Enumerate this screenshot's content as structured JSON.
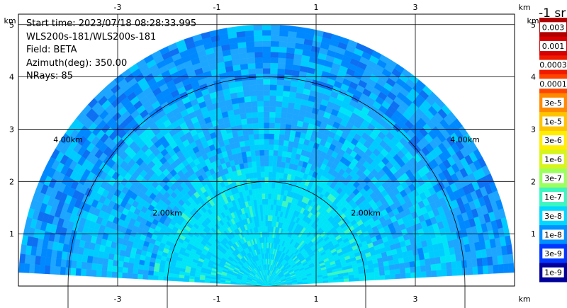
{
  "info": {
    "start_time": "Start time: 2023/07/18 08:28:33.995",
    "instrument": "WLS200s-181/WLS200s-181",
    "field": "Field: BETA",
    "azimuth": "Azimuth(deg): 350.00",
    "nrays": "NRays: 85"
  },
  "colorbar": {
    "title": "-1 sr",
    "labels": [
      "0.003",
      "0.001",
      "0.0003",
      "0.0001",
      "3e-5",
      "1e-5",
      "3e-6",
      "1e-6",
      "3e-7",
      "1e-7",
      "3e-8",
      "1e-8",
      "3e-9",
      "1e-9"
    ],
    "colors": [
      "#b00000",
      "#d80000",
      "#ef1a00",
      "#ff4400",
      "#ff8a00",
      "#ffc400",
      "#ffee00",
      "#d7f51d",
      "#9bff5e",
      "#3cf5c0",
      "#00d8ff",
      "#0090ff",
      "#0036ff",
      "#00009a"
    ]
  },
  "chart_data": {
    "type": "heatmap",
    "title": "",
    "xlabel": "km",
    "ylabel": "km",
    "x_ticks": [
      "-3",
      "-1",
      "1",
      "3"
    ],
    "y_ticks": [
      "1",
      "2",
      "3",
      "4",
      "5"
    ],
    "x_range": [
      -5.0,
      5.0
    ],
    "y_range": [
      0,
      5.2
    ],
    "range_ring_labels": [
      "2.00km",
      "2.00km",
      "4.00km",
      "4.00km"
    ],
    "range_rings_km": [
      2,
      4
    ],
    "max_range_km": 5.0,
    "elevation_min_deg": 3,
    "elevation_max_deg": 177,
    "grid": true
  }
}
